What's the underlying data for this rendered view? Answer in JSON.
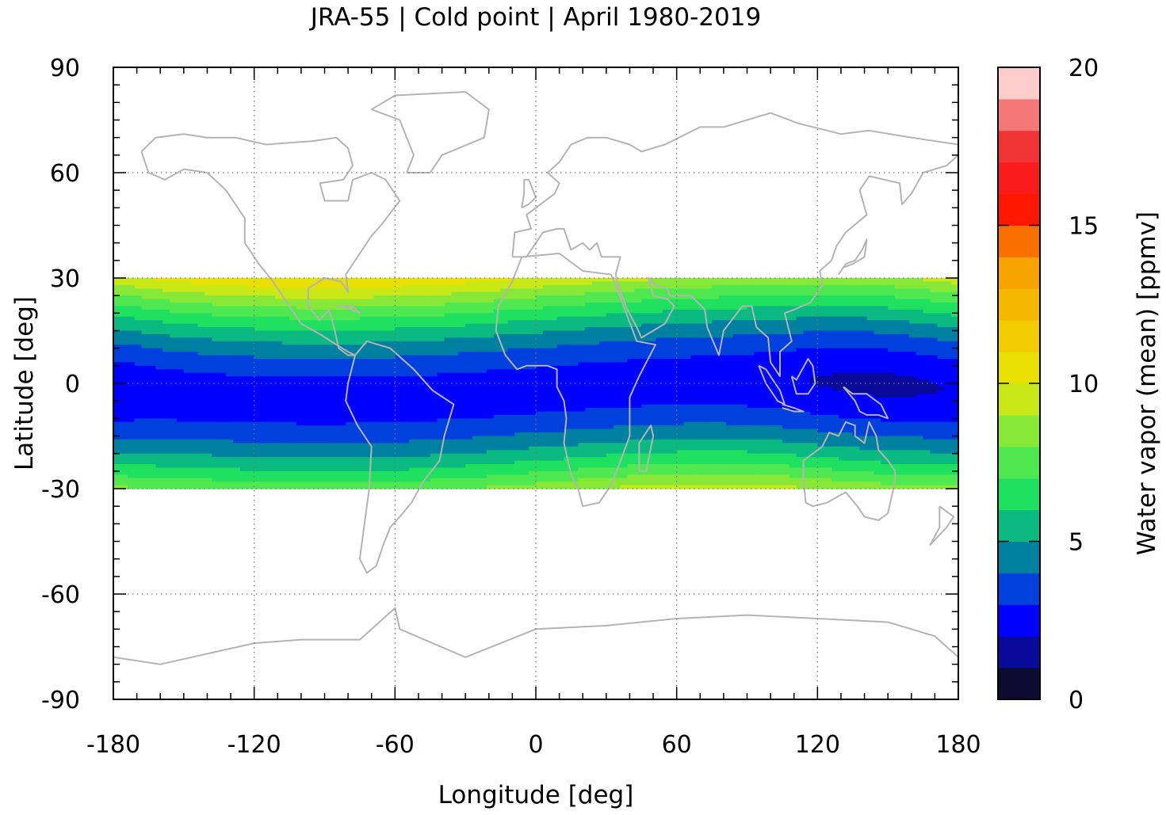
{
  "chart_data": {
    "type": "heatmap",
    "title": "JRA-55 | Cold point | April 1980-2019",
    "xlabel": "Longitude [deg]",
    "ylabel": "Latitude [deg]",
    "xlim": [
      -180,
      180
    ],
    "ylim": [
      -90,
      90
    ],
    "data_lat_range": [
      -30,
      30
    ],
    "x_ticks": [
      "-180",
      "-120",
      "-60",
      "0",
      "60",
      "120",
      "180"
    ],
    "y_ticks": [
      "90",
      "60",
      "30",
      "0",
      "-30",
      "-60",
      "-90"
    ],
    "grid": true,
    "coastlines": true,
    "colorbar": {
      "label": "Water vapor (mean) [ppmv]",
      "range": [
        0,
        20
      ],
      "ticks": [
        "0",
        "5",
        "10",
        "15",
        "20"
      ],
      "step": 1,
      "colors": [
        "#0c0c30",
        "#0a0a9a",
        "#0000ff",
        "#0040dd",
        "#0080a0",
        "#0aba80",
        "#20e060",
        "#50e850",
        "#88e838",
        "#c8e818",
        "#e8e000",
        "#f0cc00",
        "#f4b800",
        "#f8a400",
        "#fa7000",
        "#ff1800",
        "#fa1c1c",
        "#f03434",
        "#f47878",
        "#ffcccc"
      ]
    },
    "field_summary": {
      "equator_band_min": 2.5,
      "subtropics_edge_max": 10.5,
      "western_pacific_min": 2.0
    }
  }
}
